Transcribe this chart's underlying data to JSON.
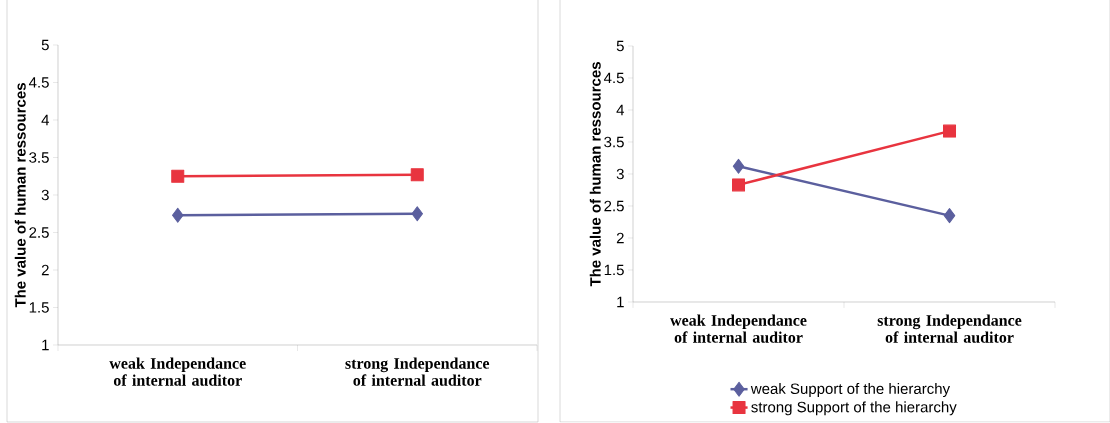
{
  "chart_data": [
    {
      "type": "line",
      "ylabel": "The value of human ressources",
      "categories": [
        "weak Independance of internal auditor",
        "strong  Independance of internal auditor"
      ],
      "ylim": [
        1,
        5
      ],
      "yticks": [
        1,
        1.5,
        2,
        2.5,
        3,
        3.5,
        4,
        4.5,
        5
      ],
      "legend": false,
      "grid": false,
      "series": [
        {
          "color": "#5b5f9e",
          "marker": "diamond",
          "values": [
            2.73,
            2.75
          ]
        },
        {
          "color": "#e8343f",
          "marker": "square",
          "values": [
            3.25,
            3.27
          ]
        }
      ]
    },
    {
      "type": "line",
      "ylabel": "The value of human ressources",
      "categories": [
        "weak Independance of internal auditor",
        "strong  Independance of internal auditor"
      ],
      "ylim": [
        1,
        5
      ],
      "yticks": [
        1,
        1.5,
        2,
        2.5,
        3,
        3.5,
        4,
        4.5,
        5
      ],
      "legend": "bottom",
      "grid": false,
      "series": [
        {
          "name": "weak  Support of the hierarchy",
          "color": "#5b5f9e",
          "marker": "diamond",
          "values": [
            3.12,
            2.35
          ]
        },
        {
          "name": "strong Support of the hierarchy",
          "color": "#e8343f",
          "marker": "square",
          "values": [
            2.83,
            3.67
          ]
        }
      ]
    }
  ]
}
